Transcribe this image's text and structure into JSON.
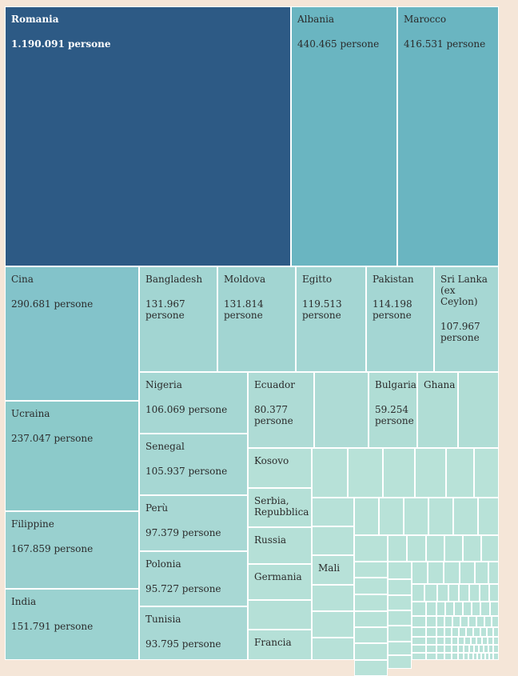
{
  "chart_data": {
    "type": "treemap",
    "title": "",
    "unit_label": "persone",
    "colors": {
      "background": "#f5e6d8",
      "top": "#2d5a85",
      "large": "#6ab5c1",
      "mid": "#83c3ca",
      "mid2": "#8ccaca",
      "mid3": "#99d0cf",
      "light": "#a6d7d3",
      "lighter": "#b0ddd5",
      "lightest": "#b8e2d8",
      "border": "#ffffff"
    },
    "labeled_items": [
      {
        "name": "Romania",
        "value": 1190091,
        "value_label": "1.190.091 persone"
      },
      {
        "name": "Albania",
        "value": 440465,
        "value_label": "440.465 persone"
      },
      {
        "name": "Marocco",
        "value": 416531,
        "value_label": "416.531 persone"
      },
      {
        "name": "Cina",
        "value": 290681,
        "value_label": "290.681 persone"
      },
      {
        "name": "Ucraina",
        "value": 237047,
        "value_label": "237.047 persone"
      },
      {
        "name": "Filippine",
        "value": 167859,
        "value_label": "167.859 persone"
      },
      {
        "name": "India",
        "value": 151791,
        "value_label": "151.791 persone"
      },
      {
        "name": "Bangladesh",
        "value": 131967,
        "value_label": "131.967 persone"
      },
      {
        "name": "Moldova",
        "value": 131814,
        "value_label": "131.814 persone"
      },
      {
        "name": "Egitto",
        "value": 119513,
        "value_label": "119.513 persone"
      },
      {
        "name": "Pakistan",
        "value": 114198,
        "value_label": "114.198 persone"
      },
      {
        "name": "Sri Lanka (ex Ceylon)",
        "value": 107967,
        "value_label": "107.967 persone"
      },
      {
        "name": "Nigeria",
        "value": 106069,
        "value_label": "106.069 persone"
      },
      {
        "name": "Senegal",
        "value": 105937,
        "value_label": "105.937 persone"
      },
      {
        "name": "Perù",
        "value": 97379,
        "value_label": "97.379 persone"
      },
      {
        "name": "Polonia",
        "value": 95727,
        "value_label": "95.727 persone"
      },
      {
        "name": "Tunisia",
        "value": 93795,
        "value_label": "93.795 persone"
      },
      {
        "name": "Ecuador",
        "value": 80377,
        "value_label": "80.377 persone"
      },
      {
        "name": "Bulgaria",
        "value": 59254,
        "value_label": "59.254 persone"
      },
      {
        "name": "Ghana",
        "value": null,
        "value_label": ""
      },
      {
        "name": "Kosovo",
        "value": null,
        "value_label": ""
      },
      {
        "name": "Serbia, Repubblica",
        "value": null,
        "value_label": ""
      },
      {
        "name": "Russia",
        "value": null,
        "value_label": ""
      },
      {
        "name": "Germania",
        "value": null,
        "value_label": ""
      },
      {
        "name": "Mali",
        "value": null,
        "value_label": ""
      },
      {
        "name": "Francia",
        "value": null,
        "value_label": ""
      }
    ]
  }
}
